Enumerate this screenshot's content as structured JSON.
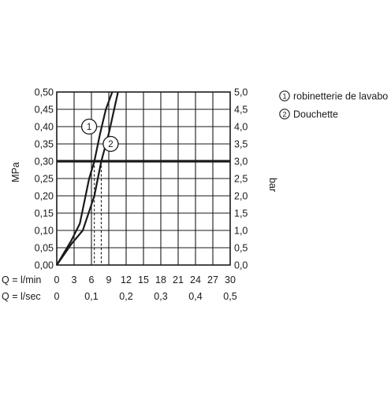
{
  "chart_data": {
    "type": "line",
    "ylabel_left": "MPa",
    "ylabel_right": "bar",
    "ylim_left": [
      0,
      0.5
    ],
    "ylim_right": [
      0,
      5.0
    ],
    "y_ticks_left": [
      "0,00",
      "0,05",
      "0,10",
      "0,15",
      "0,20",
      "0,25",
      "0,30",
      "0,35",
      "0,40",
      "0,45",
      "0,50"
    ],
    "y_ticks_right": [
      "0,0",
      "0,5",
      "1,0",
      "1,5",
      "2,0",
      "2,5",
      "3,0",
      "3,5",
      "4,0",
      "4,5",
      "5,0"
    ],
    "xlim": [
      0,
      30
    ],
    "x_ticks_lmin_label": "Q = l/min",
    "x_ticks_lmin": [
      "0",
      "3",
      "6",
      "9",
      "12",
      "15",
      "18",
      "21",
      "24",
      "27",
      "30"
    ],
    "x_ticks_lsec_label": "Q = l/sec",
    "x_ticks_lsec": [
      "0",
      "0,1",
      "0,2",
      "0,3",
      "0,4",
      "0,5"
    ],
    "grid": true,
    "reference_line_mpa": 0.3,
    "series": [
      {
        "marker": "1",
        "name": "robinetterie de lavabo",
        "x": [
          0,
          2.5,
          4.0,
          5.6,
          6.5,
          7.5,
          8.5,
          9.6
        ],
        "y": [
          0,
          0.07,
          0.12,
          0.25,
          0.3,
          0.38,
          0.45,
          0.5
        ],
        "dropline_x": 6.5
      },
      {
        "marker": "2",
        "name": "Douchette",
        "x": [
          0,
          2.5,
          4.5,
          6.5,
          7.7,
          9.0,
          10.6
        ],
        "y": [
          0,
          0.06,
          0.1,
          0.2,
          0.3,
          0.38,
          0.5
        ],
        "dropline_x": 7.7
      }
    ]
  },
  "legend": {
    "items": [
      {
        "marker": "1",
        "label": "robinetterie de lavabo"
      },
      {
        "marker": "2",
        "label": "Douchette"
      }
    ]
  },
  "colors": {
    "ink": "#1a1a1a",
    "background": "#ffffff"
  }
}
